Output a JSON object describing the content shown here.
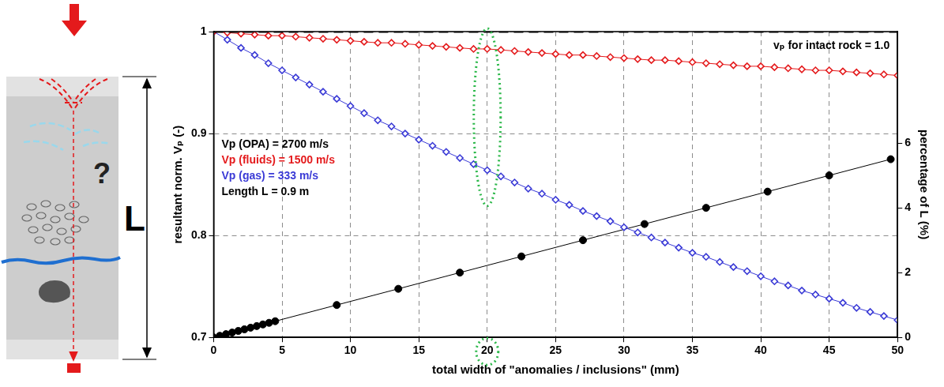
{
  "chart_data": {
    "type": "scatter",
    "xlabel": "total width of \"anomalies / inclusions\" (mm)",
    "ylabel": "resultant norm. Vₚ (-)",
    "y2label": "percentage of L (%)",
    "xlim": [
      0,
      50
    ],
    "xticks": [
      0,
      5,
      10,
      15,
      20,
      25,
      30,
      35,
      40,
      45,
      50
    ],
    "ylim": [
      0.7,
      1
    ],
    "yticks": [
      0.7,
      0.8,
      0.9,
      1
    ],
    "y2lim": [
      0,
      9.44
    ],
    "y2ticks": [
      0,
      2,
      4,
      6
    ],
    "grid": true,
    "reference_label": "vₚ for intact rock = 1.0",
    "annotations": [
      {
        "text": "Vp (OPA) = 2700 m/s",
        "color": "#000000"
      },
      {
        "text": "Vp (fluids) = 1500 m/s",
        "color": "#e41a1c"
      },
      {
        "text": "Vp (gas) = 333 m/s",
        "color": "#3a3ad6"
      },
      {
        "text": "Length L = 0.9 m",
        "color": "#000000"
      }
    ],
    "highlight_x": 20,
    "series": [
      {
        "color": "#000000",
        "marker": "none",
        "line_style": "dashed",
        "x": [
          0,
          50
        ],
        "values": [
          1,
          1
        ]
      },
      {
        "color": "#e41a1c",
        "marker": "diamond",
        "line_style": "solid",
        "x": [
          0,
          1,
          2,
          3,
          4,
          5,
          6,
          7,
          8,
          9,
          10,
          11,
          12,
          13,
          14,
          15,
          16,
          17,
          18,
          19,
          20,
          21,
          22,
          23,
          24,
          25,
          26,
          27,
          28,
          29,
          30,
          31,
          32,
          33,
          34,
          35,
          36,
          37,
          38,
          39,
          40,
          41,
          42,
          43,
          44,
          45,
          46,
          47,
          48,
          49,
          50
        ],
        "values": [
          1.0,
          0.999,
          0.998,
          0.997,
          0.996,
          0.996,
          0.995,
          0.994,
          0.993,
          0.992,
          0.991,
          0.99,
          0.989,
          0.989,
          0.988,
          0.987,
          0.986,
          0.985,
          0.984,
          0.983,
          0.983,
          0.982,
          0.981,
          0.98,
          0.979,
          0.978,
          0.977,
          0.977,
          0.976,
          0.975,
          0.974,
          0.973,
          0.972,
          0.972,
          0.971,
          0.97,
          0.969,
          0.968,
          0.967,
          0.966,
          0.966,
          0.965,
          0.964,
          0.963,
          0.962,
          0.962,
          0.961,
          0.96,
          0.959,
          0.958,
          0.957
        ]
      },
      {
        "color": "#3a3ad6",
        "marker": "diamond",
        "line_style": "solid",
        "x": [
          0,
          1,
          2,
          3,
          4,
          5,
          6,
          7,
          8,
          9,
          10,
          11,
          12,
          13,
          14,
          15,
          16,
          17,
          18,
          19,
          20,
          21,
          22,
          23,
          24,
          25,
          26,
          27,
          28,
          29,
          30,
          31,
          32,
          33,
          34,
          35,
          36,
          37,
          38,
          39,
          40,
          41,
          42,
          43,
          44,
          45,
          46,
          47,
          48,
          49,
          50
        ],
        "values": [
          1.0,
          0.992,
          0.984,
          0.977,
          0.969,
          0.962,
          0.955,
          0.948,
          0.941,
          0.934,
          0.927,
          0.92,
          0.913,
          0.907,
          0.9,
          0.894,
          0.888,
          0.882,
          0.876,
          0.87,
          0.864,
          0.858,
          0.852,
          0.846,
          0.841,
          0.835,
          0.83,
          0.824,
          0.819,
          0.814,
          0.808,
          0.803,
          0.798,
          0.793,
          0.788,
          0.783,
          0.779,
          0.774,
          0.769,
          0.765,
          0.76,
          0.755,
          0.751,
          0.746,
          0.742,
          0.738,
          0.734,
          0.729,
          0.725,
          0.721,
          0.717
        ]
      },
      {
        "color": "#000000",
        "marker": "circle",
        "line_style": "solid",
        "axis": "y2",
        "x": [
          0,
          0.45,
          0.9,
          1.35,
          1.8,
          2.25,
          2.7,
          3.15,
          3.6,
          4.05,
          4.5,
          9,
          13.5,
          18,
          22.5,
          27,
          31.5,
          36,
          40.5,
          45,
          49.5
        ],
        "values": [
          0,
          0.05,
          0.1,
          0.15,
          0.2,
          0.25,
          0.3,
          0.35,
          0.4,
          0.45,
          0.5,
          1,
          1.5,
          2,
          2.5,
          3,
          3.5,
          4,
          4.5,
          5,
          5.5
        ]
      }
    ]
  },
  "diagram": {
    "question_mark": "?",
    "length_label": "L"
  }
}
